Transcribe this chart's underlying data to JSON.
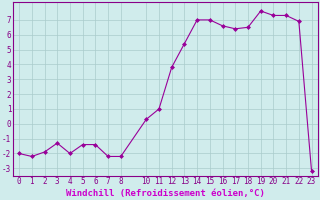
{
  "x": [
    0,
    1,
    2,
    3,
    4,
    5,
    6,
    7,
    8,
    10,
    11,
    12,
    13,
    14,
    15,
    16,
    17,
    18,
    19,
    20,
    21,
    22,
    23
  ],
  "y": [
    -2.0,
    -2.2,
    -1.9,
    -1.3,
    -2.0,
    -1.4,
    -1.4,
    -2.2,
    -2.2,
    0.3,
    1.0,
    3.8,
    5.4,
    7.0,
    7.0,
    6.6,
    6.4,
    6.5,
    7.6,
    7.3,
    7.3,
    6.9,
    -3.2
  ],
  "line_color": "#990099",
  "marker": "D",
  "marker_size": 2.0,
  "bg_color": "#d0ecec",
  "grid_color": "#aacccc",
  "xlabel": "Windchill (Refroidissement éolien,°C)",
  "xlabel_fontsize": 6.5,
  "xlabel_color": "#cc00cc",
  "xlabel_bg": "#d0ecec",
  "ylim": [
    -3.5,
    8.2
  ],
  "xlim": [
    -0.5,
    23.5
  ],
  "yticks": [
    -3,
    -2,
    -1,
    0,
    1,
    2,
    3,
    4,
    5,
    6,
    7
  ],
  "xticks": [
    0,
    1,
    2,
    3,
    4,
    5,
    6,
    7,
    8,
    10,
    11,
    12,
    13,
    14,
    15,
    16,
    17,
    18,
    19,
    20,
    21,
    22,
    23
  ],
  "tick_fontsize": 5.5,
  "tick_color": "#880088",
  "spine_color": "#880088",
  "linewidth": 0.8
}
